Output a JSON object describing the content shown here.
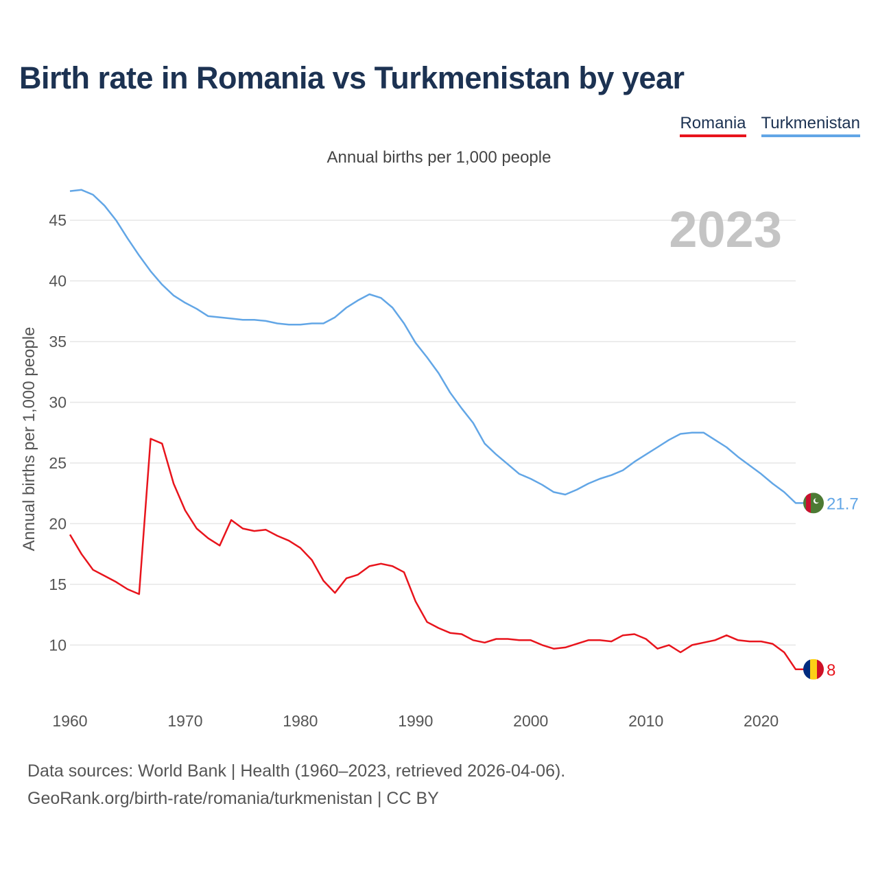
{
  "title": "Birth rate in Romania vs Turkmenistan by year",
  "subtitle": "Annual births per 1,000 people",
  "footer": {
    "line1": "Data sources: World Bank | Health (1960–2023, retrieved 2026-04-06).",
    "line2": "GeoRank.org/birth-rate/romania/turkmenistan | CC BY"
  },
  "colors": {
    "romania": "#e8141c",
    "turkmenistan": "#62a6e6",
    "grid": "#e6e6e6",
    "year": "#c4c4c4"
  },
  "chart_data": {
    "type": "line",
    "title": "Birth rate in Romania vs Turkmenistan by year",
    "ylabel": "Annual births per 1,000 people",
    "xlabel": "",
    "xlim": [
      1960,
      2023
    ],
    "ylim": [
      5.5,
      48
    ],
    "yticks": [
      10,
      15,
      20,
      25,
      30,
      35,
      40,
      45
    ],
    "xticks": [
      1960,
      1970,
      1980,
      1990,
      2000,
      2010,
      2020
    ],
    "year_label": "2023",
    "legend_position": "top-right",
    "x": [
      1960,
      1961,
      1962,
      1963,
      1964,
      1965,
      1966,
      1967,
      1968,
      1969,
      1970,
      1971,
      1972,
      1973,
      1974,
      1975,
      1976,
      1977,
      1978,
      1979,
      1980,
      1981,
      1982,
      1983,
      1984,
      1985,
      1986,
      1987,
      1988,
      1989,
      1990,
      1991,
      1992,
      1993,
      1994,
      1995,
      1996,
      1997,
      1998,
      1999,
      2000,
      2001,
      2002,
      2003,
      2004,
      2005,
      2006,
      2007,
      2008,
      2009,
      2010,
      2011,
      2012,
      2013,
      2014,
      2015,
      2016,
      2017,
      2018,
      2019,
      2020,
      2021,
      2022,
      2023
    ],
    "series": [
      {
        "name": "Romania",
        "end_label": "8",
        "values": [
          19.1,
          17.5,
          16.2,
          15.7,
          15.2,
          14.6,
          14.2,
          27.0,
          26.6,
          23.3,
          21.1,
          19.6,
          18.8,
          18.2,
          20.3,
          19.6,
          19.4,
          19.5,
          19.0,
          18.6,
          18.0,
          17.0,
          15.3,
          14.3,
          15.5,
          15.8,
          16.5,
          16.7,
          16.5,
          16.0,
          13.6,
          11.9,
          11.4,
          11.0,
          10.9,
          10.4,
          10.2,
          10.5,
          10.5,
          10.4,
          10.4,
          10.0,
          9.7,
          9.8,
          10.1,
          10.4,
          10.4,
          10.3,
          10.8,
          10.9,
          10.5,
          9.7,
          10.0,
          9.4,
          10.0,
          10.2,
          10.4,
          10.8,
          10.4,
          10.3,
          10.3,
          10.1,
          9.4,
          8.0
        ]
      },
      {
        "name": "Turkmenistan",
        "end_label": "21.7",
        "values": [
          47.4,
          47.5,
          47.1,
          46.2,
          45.0,
          43.5,
          42.1,
          40.8,
          39.7,
          38.8,
          38.2,
          37.7,
          37.1,
          37.0,
          36.9,
          36.8,
          36.8,
          36.7,
          36.5,
          36.4,
          36.4,
          36.5,
          36.5,
          37.0,
          37.8,
          38.4,
          38.9,
          38.6,
          37.8,
          36.5,
          34.9,
          33.7,
          32.4,
          30.8,
          29.5,
          28.3,
          26.6,
          25.7,
          24.9,
          24.1,
          23.7,
          23.2,
          22.6,
          22.4,
          22.8,
          23.3,
          23.7,
          24.0,
          24.4,
          25.1,
          25.7,
          26.3,
          26.9,
          27.4,
          27.5,
          27.5,
          26.9,
          26.3,
          25.5,
          24.8,
          24.1,
          23.3,
          22.6,
          21.7
        ]
      }
    ]
  }
}
